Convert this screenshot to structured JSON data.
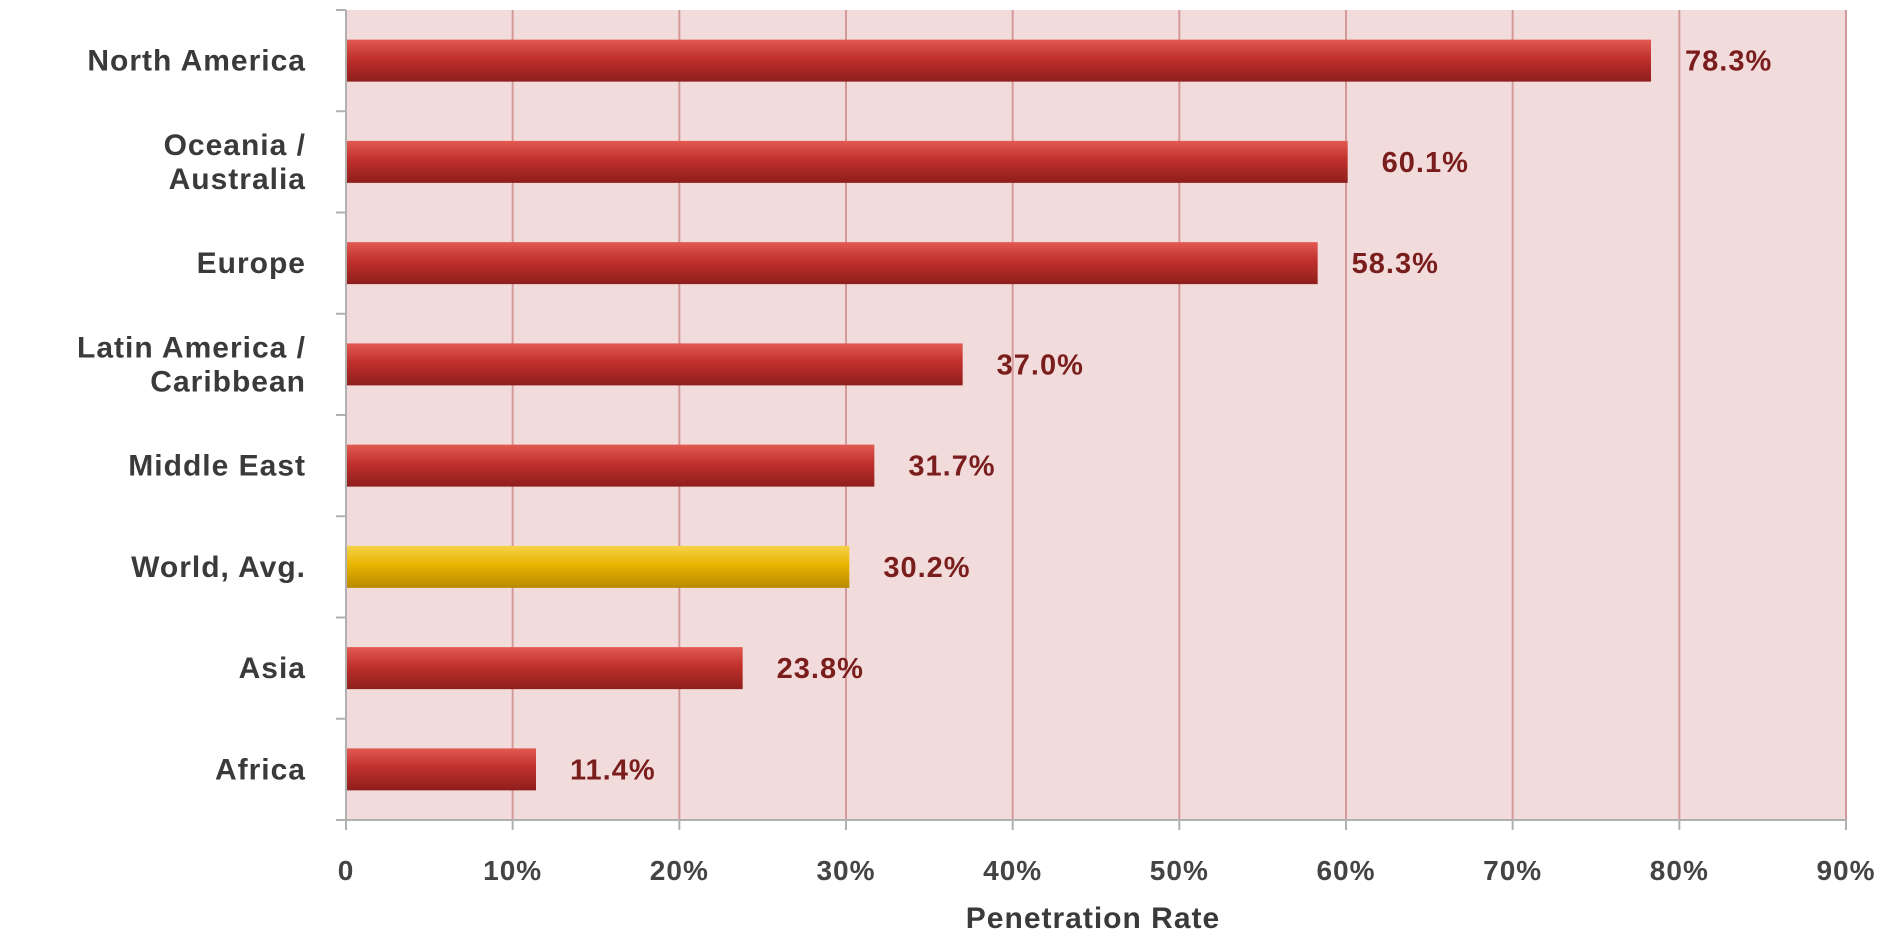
{
  "chart_data": {
    "type": "bar",
    "orientation": "horizontal",
    "categories": [
      "North America",
      "Oceania / Australia",
      "Europe",
      "Latin America / Caribbean",
      "Middle East",
      "World, Avg.",
      "Asia",
      "Africa"
    ],
    "category_lines": [
      [
        "North America"
      ],
      [
        "Oceania  /",
        "Australia"
      ],
      [
        "Europe"
      ],
      [
        "Latin America /",
        " Caribbean"
      ],
      [
        "Middle East"
      ],
      [
        "World, Avg."
      ],
      [
        "Asia"
      ],
      [
        "Africa"
      ]
    ],
    "values": [
      78.3,
      60.1,
      58.3,
      37.0,
      31.7,
      30.2,
      23.8,
      11.4
    ],
    "value_labels": [
      "78.3%",
      "60.1%",
      "58.3%",
      "37.0%",
      "31.7%",
      "30.2%",
      "23.8%",
      "11.4%"
    ],
    "highlight_category": "World, Avg.",
    "xlim": [
      0,
      90
    ],
    "xticks": [
      0,
      10,
      20,
      30,
      40,
      50,
      60,
      70,
      80,
      90
    ],
    "xtick_labels": [
      "0",
      "10%",
      "20%",
      "30%",
      "40%",
      "50%",
      "60%",
      "70%",
      "80%",
      "90%"
    ],
    "xlabel": "Penetration Rate",
    "grid": true,
    "colors": {
      "bar": "#c0302c",
      "bar_light": "#e25a52",
      "bar_dark": "#8e1e1c",
      "highlight": "#e8b400",
      "highlight_light": "#f6d24a",
      "highlight_dark": "#b88a00",
      "plot_background": "#f2dcdb",
      "gridline": "#d49a9a",
      "axis": "#b0b0b0"
    }
  }
}
